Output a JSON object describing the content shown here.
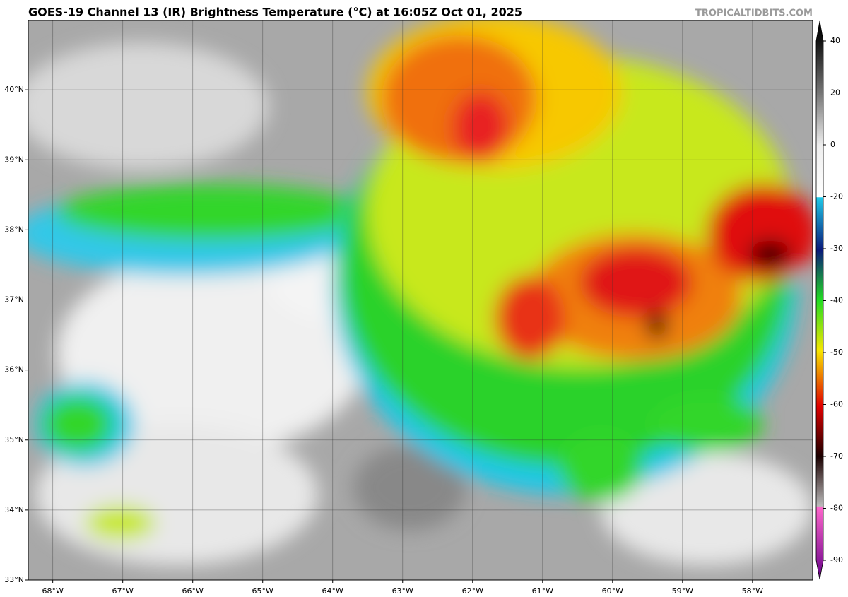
{
  "header": {
    "title": "GOES-19 Channel 13 (IR) Brightness Temperature (°C) at 16:05Z Oct 01, 2025",
    "source": "TROPICALTIDBITS.COM"
  },
  "map": {
    "xlim": [
      -68.35,
      -57.14
    ],
    "ylim": [
      33,
      40.99
    ],
    "grid": true,
    "xticks": [
      {
        "value": -68,
        "label": "68°W"
      },
      {
        "value": -67,
        "label": "67°W"
      },
      {
        "value": -66,
        "label": "66°W"
      },
      {
        "value": -65,
        "label": "65°W"
      },
      {
        "value": -64,
        "label": "64°W"
      },
      {
        "value": -63,
        "label": "63°W"
      },
      {
        "value": -62,
        "label": "62°W"
      },
      {
        "value": -61,
        "label": "61°W"
      },
      {
        "value": -60,
        "label": "60°W"
      },
      {
        "value": -59,
        "label": "59°W"
      },
      {
        "value": -58,
        "label": "58°W"
      }
    ],
    "yticks": [
      {
        "value": 33,
        "label": "33°N"
      },
      {
        "value": 34,
        "label": "34°N"
      },
      {
        "value": 35,
        "label": "35°N"
      },
      {
        "value": 36,
        "label": "36°N"
      },
      {
        "value": 37,
        "label": "37°N"
      },
      {
        "value": 38,
        "label": "38°N"
      },
      {
        "value": 39,
        "label": "39°N"
      },
      {
        "value": 40,
        "label": "40°N"
      }
    ]
  },
  "colorbar": {
    "ticks": [
      40,
      20,
      0,
      -20,
      -30,
      -40,
      -50,
      -60,
      -70,
      -80,
      -90
    ]
  }
}
